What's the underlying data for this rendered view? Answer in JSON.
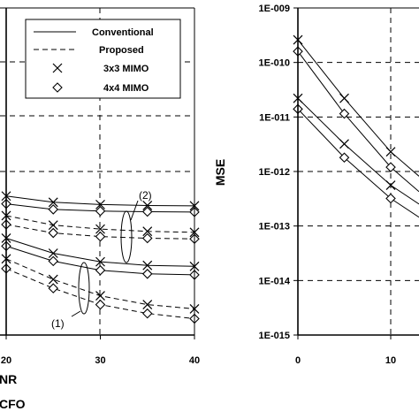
{
  "chart_data": [
    {
      "type": "line",
      "panel": "left",
      "xlabel": "NR",
      "xlabel2": "CFO",
      "ylabel": "",
      "x_ticks": [
        "20",
        "30",
        "40"
      ],
      "xlim": [
        18,
        40
      ],
      "ylim": [
        0,
        1
      ],
      "grid": true,
      "legend": {
        "position": "top-right",
        "entries": [
          {
            "label": "Conventional",
            "marker": "solid-line"
          },
          {
            "label": "Proposed",
            "marker": "dashed-line"
          },
          {
            "label": "3x3 MIMO",
            "marker": "x"
          },
          {
            "label": "4x4 MIMO",
            "marker": "diamond"
          }
        ]
      },
      "annotations": [
        "(2)",
        "(1)"
      ],
      "series": [
        {
          "style": "solid",
          "marker": "x",
          "x": [
            20,
            25,
            30,
            35,
            40
          ],
          "y": [
            0.425,
            0.406,
            0.399,
            0.396,
            0.395
          ]
        },
        {
          "style": "solid",
          "marker": "diamond",
          "x": [
            20,
            25,
            30,
            35,
            40
          ],
          "y": [
            0.401,
            0.384,
            0.379,
            0.377,
            0.376
          ]
        },
        {
          "style": "dashed",
          "marker": "x",
          "x": [
            20,
            25,
            30,
            35,
            40
          ],
          "y": [
            0.365,
            0.336,
            0.324,
            0.317,
            0.314
          ]
        },
        {
          "style": "dashed",
          "marker": "diamond",
          "x": [
            20,
            25,
            30,
            35,
            40
          ],
          "y": [
            0.338,
            0.312,
            0.301,
            0.296,
            0.294
          ]
        },
        {
          "style": "solid",
          "marker": "x",
          "x": [
            20,
            25,
            30,
            35,
            40
          ],
          "y": [
            0.296,
            0.25,
            0.224,
            0.213,
            0.21
          ]
        },
        {
          "style": "solid",
          "marker": "diamond",
          "x": [
            20,
            25,
            30,
            35,
            40
          ],
          "y": [
            0.272,
            0.226,
            0.198,
            0.187,
            0.184
          ]
        },
        {
          "style": "dashed",
          "marker": "x",
          "x": [
            20,
            25,
            30,
            35,
            40
          ],
          "y": [
            0.233,
            0.17,
            0.12,
            0.093,
            0.08
          ]
        },
        {
          "style": "dashed",
          "marker": "diamond",
          "x": [
            20,
            25,
            30,
            35,
            40
          ],
          "y": [
            0.203,
            0.143,
            0.093,
            0.066,
            0.05
          ]
        }
      ]
    },
    {
      "type": "line",
      "panel": "right",
      "ylabel": "MSE",
      "xlabel": "",
      "y_scale": "log",
      "y_ticks": [
        "1E-009",
        "1E-010",
        "1E-011",
        "1E-012",
        "1E-013",
        "1E-014",
        "1E-015"
      ],
      "x_ticks": [
        "0",
        "10"
      ],
      "xlim": [
        0,
        20
      ],
      "ylim": [
        1e-15,
        1e-09
      ],
      "grid": true,
      "series": [
        {
          "style": "solid",
          "marker": "x",
          "x": [
            0,
            5,
            10
          ],
          "y": [
            2.6e-10,
            2.2e-11,
            2.3e-12
          ]
        },
        {
          "style": "solid",
          "marker": "diamond",
          "x": [
            0,
            5,
            10
          ],
          "y": [
            1.6e-10,
            1.15e-11,
            1.2e-12
          ]
        },
        {
          "style": "solid",
          "marker": "x",
          "x": [
            0,
            5,
            10
          ],
          "y": [
            2.2e-11,
            3.2e-12,
            5.6e-13
          ]
        },
        {
          "style": "solid",
          "marker": "diamond",
          "x": [
            0,
            5,
            10
          ],
          "y": [
            1.4e-11,
            1.8e-12,
            3.2e-13
          ]
        }
      ]
    }
  ]
}
